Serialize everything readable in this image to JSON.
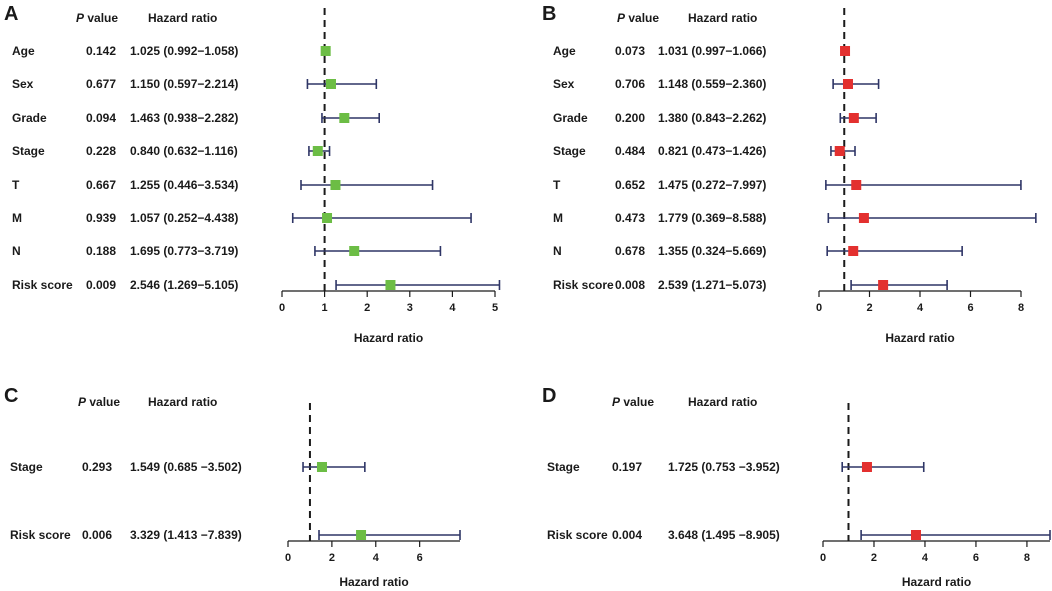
{
  "colors": {
    "green": "#6cbd45",
    "red": "#e3302f",
    "whisker": "#2e3566",
    "axis": "#1a1a1a"
  },
  "chart_data": [
    {
      "panel": "A",
      "type": "forest",
      "header_p": "P",
      "header_p_suffix": "value",
      "header_hr": "Hazard ratio",
      "xlabel": "Hazard ratio",
      "xlim": [
        0,
        5
      ],
      "ticks": [
        0,
        1,
        2,
        3,
        4,
        5
      ],
      "ref_line": 1,
      "marker_color": "green",
      "rows": [
        {
          "name": "Age",
          "p": "0.142",
          "hr_text": "1.025 (0.992−1.058)",
          "hr": 1.025,
          "lo": 0.992,
          "hi": 1.058
        },
        {
          "name": "Sex",
          "p": "0.677",
          "hr_text": "1.150 (0.597−2.214)",
          "hr": 1.15,
          "lo": 0.597,
          "hi": 2.214
        },
        {
          "name": "Grade",
          "p": "0.094",
          "hr_text": "1.463 (0.938−2.282)",
          "hr": 1.463,
          "lo": 0.938,
          "hi": 2.282
        },
        {
          "name": "Stage",
          "p": "0.228",
          "hr_text": "0.840 (0.632−1.116)",
          "hr": 0.84,
          "lo": 0.632,
          "hi": 1.116
        },
        {
          "name": "T",
          "p": "0.667",
          "hr_text": "1.255 (0.446−3.534)",
          "hr": 1.255,
          "lo": 0.446,
          "hi": 3.534
        },
        {
          "name": "M",
          "p": "0.939",
          "hr_text": "1.057 (0.252−4.438)",
          "hr": 1.057,
          "lo": 0.252,
          "hi": 4.438
        },
        {
          "name": "N",
          "p": "0.188",
          "hr_text": "1.695 (0.773−3.719)",
          "hr": 1.695,
          "lo": 0.773,
          "hi": 3.719
        },
        {
          "name": "Risk score",
          "p": "0.009",
          "hr_text": "2.546 (1.269−5.105)",
          "hr": 2.546,
          "lo": 1.269,
          "hi": 5.105
        }
      ]
    },
    {
      "panel": "B",
      "type": "forest",
      "header_p": "P",
      "header_p_suffix": "value",
      "header_hr": "Hazard ratio",
      "xlabel": "Hazard ratio",
      "xlim": [
        0,
        8
      ],
      "ticks": [
        0,
        2,
        4,
        6,
        8
      ],
      "ref_line": 1,
      "marker_color": "red",
      "rows": [
        {
          "name": "Age",
          "p": "0.073",
          "hr_text": "1.031 (0.997−1.066)",
          "hr": 1.031,
          "lo": 0.997,
          "hi": 1.066
        },
        {
          "name": "Sex",
          "p": "0.706",
          "hr_text": "1.148 (0.559−2.360)",
          "hr": 1.148,
          "lo": 0.559,
          "hi": 2.36
        },
        {
          "name": "Grade",
          "p": "0.200",
          "hr_text": "1.380 (0.843−2.262)",
          "hr": 1.38,
          "lo": 0.843,
          "hi": 2.262
        },
        {
          "name": "Stage",
          "p": "0.484",
          "hr_text": "0.821 (0.473−1.426)",
          "hr": 0.821,
          "lo": 0.473,
          "hi": 1.426
        },
        {
          "name": "T",
          "p": "0.652",
          "hr_text": "1.475 (0.272−7.997)",
          "hr": 1.475,
          "lo": 0.272,
          "hi": 7.997
        },
        {
          "name": "M",
          "p": "0.473",
          "hr_text": "1.779 (0.369−8.588)",
          "hr": 1.779,
          "lo": 0.369,
          "hi": 8.588
        },
        {
          "name": "N",
          "p": "0.678",
          "hr_text": "1.355 (0.324−5.669)",
          "hr": 1.355,
          "lo": 0.324,
          "hi": 5.669
        },
        {
          "name": "Risk score",
          "p": "0.008",
          "hr_text": "2.539 (1.271−5.073)",
          "hr": 2.539,
          "lo": 1.271,
          "hi": 5.073
        }
      ]
    },
    {
      "panel": "C",
      "type": "forest",
      "header_p": "P",
      "header_p_suffix": "value",
      "header_hr": "Hazard ratio",
      "xlabel": "Hazard ratio",
      "xlim": [
        0,
        7.839
      ],
      "ticks": [
        0,
        2,
        4,
        6
      ],
      "ref_line": 1,
      "marker_color": "green",
      "rows": [
        {
          "name": "Stage",
          "p": "0.293",
          "hr_text": "1.549 (0.685 −3.502)",
          "hr": 1.549,
          "lo": 0.685,
          "hi": 3.502
        },
        {
          "name": "Risk score",
          "p": "0.006",
          "hr_text": "3.329 (1.413 −7.839)",
          "hr": 3.329,
          "lo": 1.413,
          "hi": 7.839
        }
      ]
    },
    {
      "panel": "D",
      "type": "forest",
      "header_p": "P",
      "header_p_suffix": "value",
      "header_hr": "Hazard ratio",
      "xlabel": "Hazard ratio",
      "xlim": [
        0,
        8.905
      ],
      "ticks": [
        0,
        2,
        4,
        6,
        8
      ],
      "ref_line": 1,
      "marker_color": "red",
      "rows": [
        {
          "name": "Stage",
          "p": "0.197",
          "hr_text": "1.725 (0.753 −3.952)",
          "hr": 1.725,
          "lo": 0.753,
          "hi": 3.952
        },
        {
          "name": "Risk score",
          "p": "0.004",
          "hr_text": "3.648 (1.495 −8.905)",
          "hr": 3.648,
          "lo": 1.495,
          "hi": 8.905
        }
      ]
    }
  ]
}
